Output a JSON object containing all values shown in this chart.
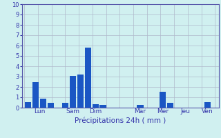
{
  "bar_values": [
    0.55,
    2.5,
    0.9,
    0.45,
    0.5,
    3.1,
    3.2,
    5.8,
    0.35,
    0.3,
    0.3,
    1.55,
    0.5,
    0.55
  ],
  "bar_positions": [
    0,
    1,
    2,
    3,
    5,
    6,
    7,
    8,
    9,
    10,
    15,
    18,
    19,
    24
  ],
  "tick_positions": [
    1.5,
    6,
    9,
    15,
    18,
    21,
    24
  ],
  "tick_labels": [
    "Lun",
    "Sam",
    "Dim",
    "Mar",
    "Mer",
    "Jeu",
    "Ven"
  ],
  "xlabel": "Précipitations 24h ( mm )",
  "ylabel": "",
  "ylim": [
    0,
    10
  ],
  "yticks": [
    0,
    1,
    2,
    3,
    4,
    5,
    6,
    7,
    8,
    9,
    10
  ],
  "bar_color": "#1a56c4",
  "background_color": "#d0f0f0",
  "grid_color": "#b0b8cc",
  "grid_color_major": "#cc9999",
  "axis_color": "#5555aa",
  "tick_color": "#3333aa",
  "xlabel_color": "#3333aa",
  "bar_width": 0.85,
  "figsize": [
    3.2,
    2.0
  ],
  "dpi": 100
}
